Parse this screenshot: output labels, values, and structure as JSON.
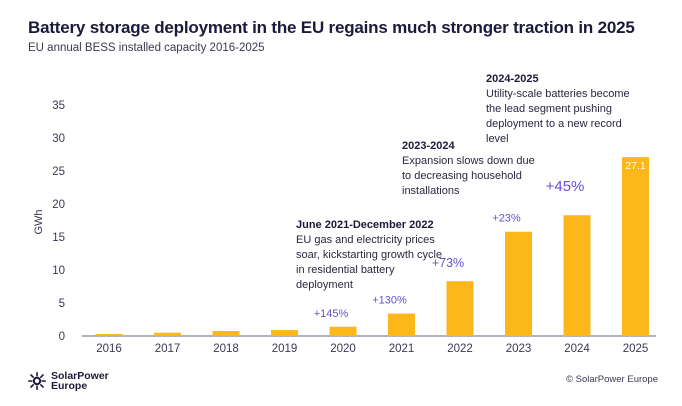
{
  "header": {
    "title": "Battery storage deployment in the EU regains much stronger traction in 2025",
    "subtitle": "EU annual BESS installed capacity 2016-2025"
  },
  "chart_data": {
    "type": "bar",
    "title": "Battery storage deployment in the EU regains much stronger traction in 2025",
    "subtitle": "EU annual BESS installed capacity 2016-2025",
    "xlabel": "",
    "ylabel": "GWh",
    "ylim": [
      0,
      35
    ],
    "yticks": [
      0,
      5,
      10,
      15,
      20,
      25,
      30,
      35
    ],
    "grid": false,
    "categories": [
      "2016",
      "2017",
      "2018",
      "2019",
      "2020",
      "2021",
      "2022",
      "2023",
      "2024",
      "2025"
    ],
    "values": [
      0.3,
      0.5,
      0.75,
      0.9,
      1.4,
      3.4,
      8.3,
      15.8,
      18.3,
      27.1
    ],
    "bar_color": "#fdb71a",
    "growth_labels": [
      {
        "category": "2020",
        "text": "+145%"
      },
      {
        "category": "2021",
        "text": "+130%"
      },
      {
        "category": "2022",
        "text": "+73%"
      },
      {
        "category": "2023",
        "text": "+23%"
      },
      {
        "category": "2024",
        "text": "+45%"
      }
    ],
    "growth_color": "#6a4fd0",
    "value_labels": [
      {
        "category": "2025",
        "text": "27.1"
      }
    ],
    "annotations": [
      {
        "heading": "June 2021-December 2022",
        "lines": [
          "EU gas and electricity prices",
          "soar, kickstarting growth cycle",
          "in residential battery",
          "deployment"
        ]
      },
      {
        "heading": "2023-2024",
        "lines": [
          "Expansion slows down due",
          "to decreasing household",
          "installations"
        ]
      },
      {
        "heading": "2024-2025",
        "lines": [
          "Utility-scale batteries become",
          "the lead segment pushing",
          "deployment to a new record",
          "level"
        ]
      }
    ]
  },
  "footer": {
    "logo_line1": "SolarPower",
    "logo_line2": "Europe",
    "copyright": "© SolarPower Europe"
  }
}
